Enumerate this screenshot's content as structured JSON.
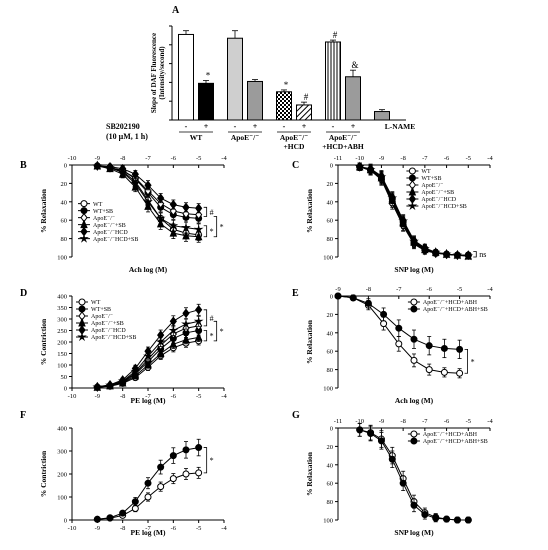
{
  "colors": {
    "ink": "#000000",
    "gray_fill": "#9b9b9b",
    "light_fill": "#cfcfcf",
    "bg": "#ffffff"
  },
  "chart_data": [
    {
      "id": "A",
      "panel_label": "A",
      "type": "bar",
      "ylabel_lines": [
        "Slope of DAF Fluorescence",
        "(Intensity/second)"
      ],
      "ylim": [
        0,
        1.0
      ],
      "yticks": [
        0,
        0.2,
        0.4,
        0.6,
        0.8,
        1.0
      ],
      "row_label_lines": [
        "SB202190",
        "(10 μM, 1 h)"
      ],
      "values": [
        0.91,
        0.39,
        0.87,
        0.41,
        0.3,
        0.16,
        0.83,
        0.46,
        0.09
      ],
      "errors": [
        0.04,
        0.03,
        0.08,
        0.02,
        0.02,
        0.03,
        0.02,
        0.07,
        0.02
      ],
      "sb_marks": [
        "-",
        "+",
        "-",
        "+",
        "-",
        "+",
        "-",
        "+",
        ""
      ],
      "fills": [
        "white",
        "black",
        "lightgray",
        "gray",
        "checker",
        "hatch",
        "vlines",
        "gray",
        "gray"
      ],
      "annotations": [
        "",
        "*",
        "",
        "",
        "*",
        "#",
        "#",
        "&",
        ""
      ],
      "groups": [
        {
          "lines": [
            "WT"
          ],
          "bars": [
            0,
            1
          ]
        },
        {
          "lines": [
            "ApoE⁻/⁻"
          ],
          "bars": [
            2,
            3
          ]
        },
        {
          "lines": [
            "ApoE⁻/⁻",
            "+HCD"
          ],
          "bars": [
            4,
            5
          ]
        },
        {
          "lines": [
            "ApoE⁻/⁻",
            "+HCD+ABH"
          ],
          "bars": [
            6,
            7
          ]
        },
        {
          "lines": [
            "L-NAME"
          ],
          "bars": [
            8
          ]
        }
      ]
    },
    {
      "id": "B",
      "panel_label": "B",
      "type": "line",
      "xlabel": "Ach log (M)",
      "ylabel": "% Relaxation",
      "xlim": [
        -10,
        -4
      ],
      "xticks": [
        -10,
        -9,
        -8,
        -7,
        -6,
        -5,
        -4
      ],
      "ylim": [
        0,
        100
      ],
      "yticks": [
        0,
        20,
        40,
        60,
        80,
        100
      ],
      "y_inverted": true,
      "x": [
        -9,
        -8.5,
        -8,
        -7.5,
        -7,
        -6.5,
        -6,
        -5.5,
        -5
      ],
      "series": [
        {
          "name": "WT",
          "marker": "circle-open",
          "values": [
            1,
            3,
            7,
            18,
            38,
            58,
            70,
            74,
            76
          ],
          "errors": [
            2,
            3,
            4,
            5,
            6,
            6,
            6,
            6,
            6
          ]
        },
        {
          "name": "WT+SB",
          "marker": "circle-filled",
          "values": [
            1,
            3,
            6,
            15,
            30,
            46,
            54,
            57,
            58
          ],
          "errors": [
            2,
            3,
            4,
            5,
            5,
            5,
            5,
            5,
            5
          ]
        },
        {
          "name": "ApoE⁻/⁻",
          "marker": "diamond-open",
          "values": [
            1,
            3,
            6,
            14,
            28,
            42,
            50,
            53,
            54
          ],
          "errors": [
            2,
            3,
            4,
            5,
            5,
            5,
            5,
            5,
            5
          ]
        },
        {
          "name": "ApoE⁻/⁻+SB",
          "marker": "triangle-filled",
          "values": [
            1,
            4,
            10,
            24,
            45,
            64,
            74,
            77,
            78
          ],
          "errors": [
            2,
            3,
            4,
            5,
            6,
            6,
            6,
            6,
            6
          ]
        },
        {
          "name": "ApoE⁻/⁻HCD",
          "marker": "diamond-filled",
          "values": [
            1,
            2,
            4,
            10,
            22,
            36,
            43,
            46,
            47
          ],
          "errors": [
            2,
            3,
            3,
            4,
            5,
            5,
            5,
            5,
            5
          ]
        },
        {
          "name": "ApoE⁻/⁻HCD+SB",
          "marker": "star",
          "values": [
            1,
            3,
            8,
            20,
            40,
            58,
            66,
            68,
            70
          ],
          "errors": [
            2,
            3,
            4,
            5,
            6,
            6,
            6,
            6,
            6
          ]
        }
      ],
      "legend": "left",
      "brackets": [
        {
          "label": "#",
          "y1": 46,
          "y2": 56,
          "side": "inner"
        },
        {
          "label": "*",
          "y1": 66,
          "y2": 78,
          "side": "inner"
        },
        {
          "label": "*",
          "y1": 56,
          "y2": 78,
          "side": "outer"
        }
      ]
    },
    {
      "id": "C",
      "panel_label": "C",
      "type": "line",
      "xlabel": "SNP log (M)",
      "ylabel": "% Relaxation",
      "xlim": [
        -11,
        -4
      ],
      "xticks": [
        -11,
        -10,
        -9,
        -8,
        -7,
        -6,
        -5,
        -4
      ],
      "ylim": [
        0,
        100
      ],
      "yticks": [
        0,
        20,
        40,
        60,
        80,
        100
      ],
      "y_inverted": true,
      "x": [
        -10,
        -9.5,
        -9,
        -8.5,
        -8,
        -7.5,
        -7,
        -6.5,
        -6,
        -5.5,
        -5
      ],
      "series": [
        {
          "name": "WT",
          "marker": "circle-open",
          "values": [
            2,
            6,
            15,
            40,
            65,
            85,
            92,
            96,
            97,
            98,
            98
          ],
          "errors": [
            4,
            5,
            6,
            6,
            6,
            5,
            4,
            3,
            3,
            3,
            3
          ]
        },
        {
          "name": "WT+SB",
          "marker": "circle-filled",
          "values": [
            2,
            5,
            13,
            37,
            62,
            83,
            91,
            95,
            97,
            98,
            98
          ],
          "errors": [
            4,
            5,
            6,
            6,
            6,
            5,
            4,
            3,
            3,
            3,
            3
          ]
        },
        {
          "name": "ApoE⁻/⁻",
          "marker": "diamond-open",
          "values": [
            2,
            6,
            16,
            42,
            66,
            86,
            93,
            96,
            97,
            98,
            98
          ],
          "errors": [
            4,
            5,
            6,
            6,
            6,
            5,
            4,
            3,
            3,
            3,
            3
          ]
        },
        {
          "name": "ApoE⁻/⁻+SB",
          "marker": "triangle-filled",
          "values": [
            2,
            5,
            14,
            38,
            63,
            84,
            92,
            95,
            97,
            98,
            99
          ],
          "errors": [
            4,
            5,
            6,
            6,
            6,
            5,
            4,
            3,
            3,
            3,
            3
          ]
        },
        {
          "name": "ApoE⁻/⁻HCD",
          "marker": "diamond-filled",
          "values": [
            2,
            4,
            12,
            35,
            60,
            82,
            90,
            95,
            97,
            98,
            98
          ],
          "errors": [
            4,
            5,
            6,
            6,
            6,
            5,
            4,
            3,
            3,
            3,
            3
          ]
        },
        {
          "name": "ApoE⁻/⁻HCD+SB",
          "marker": "star",
          "values": [
            2,
            5,
            13,
            36,
            61,
            83,
            91,
            95,
            97,
            98,
            99
          ],
          "errors": [
            4,
            5,
            6,
            6,
            6,
            5,
            4,
            3,
            3,
            3,
            3
          ]
        }
      ],
      "legend": "top-right",
      "brackets": [
        {
          "label": "ns",
          "y1": 94,
          "y2": 100,
          "side": "inner"
        }
      ]
    },
    {
      "id": "D",
      "panel_label": "D",
      "type": "line",
      "xlabel": "PE log (M)",
      "ylabel": "% Contriction",
      "xlim": [
        -10,
        -4
      ],
      "xticks": [
        -10,
        -9,
        -8,
        -7,
        -6,
        -5,
        -4
      ],
      "ylim": [
        0,
        400
      ],
      "yticks": [
        0,
        50,
        100,
        150,
        200,
        250,
        300,
        350,
        400
      ],
      "y_inverted": false,
      "x": [
        -9,
        -8.5,
        -8,
        -7.5,
        -7,
        -6.5,
        -6,
        -5.5,
        -5
      ],
      "series": [
        {
          "name": "WT",
          "marker": "circle-open",
          "values": [
            3,
            8,
            20,
            45,
            90,
            140,
            175,
            195,
            205
          ],
          "errors": [
            3,
            4,
            6,
            10,
            14,
            16,
            18,
            18,
            18
          ]
        },
        {
          "name": "WT+SB",
          "marker": "circle-filled",
          "values": [
            4,
            10,
            25,
            60,
            115,
            170,
            215,
            240,
            250
          ],
          "errors": [
            3,
            4,
            7,
            12,
            16,
            18,
            20,
            20,
            20
          ]
        },
        {
          "name": "ApoE⁻/⁻",
          "marker": "diamond-open",
          "values": [
            4,
            11,
            28,
            65,
            125,
            185,
            235,
            260,
            270
          ],
          "errors": [
            3,
            4,
            7,
            12,
            16,
            18,
            20,
            20,
            20
          ]
        },
        {
          "name": "ApoE⁻/⁻+SB",
          "marker": "triangle-filled",
          "values": [
            3,
            9,
            22,
            52,
            100,
            150,
            190,
            210,
            220
          ],
          "errors": [
            3,
            4,
            6,
            10,
            14,
            16,
            18,
            18,
            18
          ]
        },
        {
          "name": "ApoE⁻/⁻HCD",
          "marker": "diamond-filled",
          "values": [
            5,
            14,
            35,
            85,
            160,
            230,
            290,
            325,
            340
          ],
          "errors": [
            3,
            5,
            8,
            14,
            18,
            22,
            24,
            24,
            24
          ]
        },
        {
          "name": "ApoE⁻/⁻HCD+SB",
          "marker": "star",
          "values": [
            4,
            12,
            30,
            72,
            138,
            200,
            250,
            278,
            290
          ],
          "errors": [
            3,
            4,
            7,
            12,
            16,
            20,
            22,
            22,
            22
          ]
        }
      ],
      "legend": "top-left",
      "brackets": [
        {
          "label": "#",
          "y1": 270,
          "y2": 340,
          "side": "inner"
        },
        {
          "label": "*",
          "y1": 205,
          "y2": 250,
          "side": "inner"
        },
        {
          "label": "*",
          "y1": 205,
          "y2": 290,
          "side": "outer"
        }
      ]
    },
    {
      "id": "E",
      "panel_label": "E",
      "type": "line",
      "xlabel": "Ach log (M)",
      "ylabel": "% Relaxation",
      "xlim": [
        -9,
        -4
      ],
      "xticks": [
        -9,
        -8,
        -7,
        -6,
        -5,
        -4
      ],
      "ylim": [
        0,
        100
      ],
      "yticks": [
        0,
        20,
        40,
        60,
        80,
        100
      ],
      "y_inverted": true,
      "x": [
        -9,
        -8.5,
        -8,
        -7.5,
        -7,
        -6.5,
        -6,
        -5.5,
        -5
      ],
      "series": [
        {
          "name": "ApoE⁻/⁻+HCD+ABH",
          "marker": "circle-open",
          "values": [
            0,
            2,
            10,
            30,
            52,
            70,
            80,
            83,
            84
          ],
          "errors": [
            2,
            3,
            5,
            7,
            8,
            7,
            6,
            5,
            5
          ]
        },
        {
          "name": "ApoE⁻/⁻+HCD+ABH+SB",
          "marker": "circle-filled",
          "values": [
            0,
            2,
            8,
            20,
            35,
            47,
            54,
            57,
            58
          ],
          "errors": [
            2,
            3,
            5,
            7,
            9,
            10,
            10,
            10,
            10
          ]
        }
      ],
      "legend": "top-right",
      "brackets": [
        {
          "label": "*",
          "y1": 58,
          "y2": 84,
          "side": "inner"
        }
      ]
    },
    {
      "id": "F",
      "panel_label": "F",
      "type": "line",
      "xlabel": "PE log (M)",
      "ylabel": "% Contriction",
      "xlim": [
        -10,
        -4
      ],
      "xticks": [
        -10,
        -9,
        -8,
        -7,
        -6,
        -5,
        -4
      ],
      "ylim": [
        0,
        400
      ],
      "yticks": [
        0,
        100,
        200,
        300,
        400
      ],
      "y_inverted": false,
      "x": [
        -9,
        -8.5,
        -8,
        -7.5,
        -7,
        -6.5,
        -6,
        -5.5,
        -5
      ],
      "series": [
        {
          "name": "",
          "marker": "circle-open",
          "values": [
            3,
            8,
            20,
            50,
            100,
            145,
            180,
            200,
            205
          ],
          "errors": [
            3,
            4,
            8,
            14,
            18,
            20,
            22,
            24,
            24
          ]
        },
        {
          "name": "",
          "marker": "circle-filled",
          "values": [
            3,
            10,
            30,
            80,
            160,
            230,
            280,
            305,
            315
          ],
          "errors": [
            3,
            5,
            10,
            18,
            24,
            30,
            34,
            36,
            36
          ]
        }
      ],
      "legend": "none",
      "brackets": [
        {
          "label": "*",
          "y1": 205,
          "y2": 315,
          "side": "inner"
        }
      ]
    },
    {
      "id": "G",
      "panel_label": "G",
      "type": "line",
      "xlabel": "SNP log (M)",
      "ylabel": "% Relaxation",
      "xlim": [
        -11,
        -4
      ],
      "xticks": [
        -11,
        -10,
        -9,
        -8,
        -7,
        -6,
        -5,
        -4
      ],
      "ylim": [
        0,
        100
      ],
      "yticks": [
        0,
        20,
        40,
        60,
        80,
        100
      ],
      "y_inverted": true,
      "x": [
        -10,
        -9.5,
        -9,
        -8.5,
        -8,
        -7.5,
        -7,
        -6.5,
        -6,
        -5.5,
        -5
      ],
      "series": [
        {
          "name": "ApoE⁻/⁻+HCD+ABH",
          "marker": "circle-open",
          "values": [
            2,
            5,
            12,
            30,
            55,
            80,
            92,
            97,
            99,
            100,
            100
          ],
          "errors": [
            7,
            8,
            9,
            9,
            8,
            7,
            5,
            4,
            3,
            3,
            3
          ]
        },
        {
          "name": "ApoE⁻/⁻+HCD+ABH+SB",
          "marker": "circle-filled",
          "values": [
            2,
            6,
            14,
            34,
            60,
            84,
            94,
            98,
            99,
            100,
            100
          ],
          "errors": [
            7,
            8,
            9,
            9,
            8,
            7,
            5,
            4,
            3,
            3,
            3
          ]
        }
      ],
      "legend": "top-right",
      "brackets": []
    }
  ]
}
